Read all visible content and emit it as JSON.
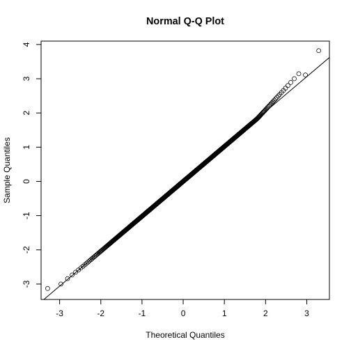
{
  "chart_data": {
    "type": "scatter",
    "title": "Normal Q-Q Plot",
    "xlabel": "Theoretical Quantiles",
    "ylabel": "Sample Quantiles",
    "xlim": [
      -3.45,
      3.55
    ],
    "ylim": [
      -3.45,
      4.1
    ],
    "x_ticks": [
      -3,
      -2,
      -1,
      0,
      1,
      2,
      3
    ],
    "y_ticks": [
      -3,
      -2,
      -1,
      0,
      1,
      2,
      3,
      4
    ],
    "grid": false,
    "legend": "none",
    "point_style": "open-circle",
    "point_color": "#000000",
    "reference_line": {
      "slope": 1.02,
      "intercept": 0.0
    },
    "sample_deviation": {
      "upper_tail_start": 1.8,
      "upper_tail_slope": 0.28,
      "lower_tail_start": -2.4,
      "lower_tail_slope": 0.05
    },
    "n_points": 1000,
    "extreme_points": [
      {
        "x": -3.29,
        "y": -3.13
      },
      {
        "x": -2.99,
        "y": -3.0
      },
      {
        "x": 2.99,
        "y": 3.11
      },
      {
        "x": 3.29,
        "y": 3.82
      }
    ]
  }
}
